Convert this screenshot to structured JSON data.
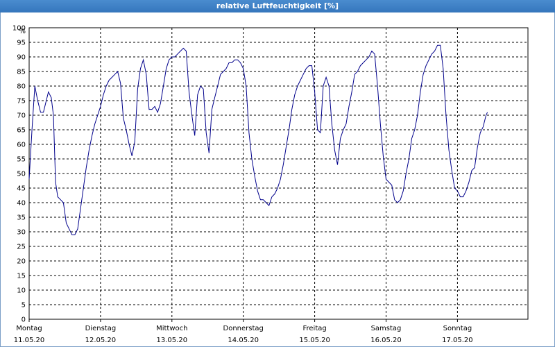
{
  "window": {
    "title": "relative Luftfeuchtigkeit [%]"
  },
  "chart_data": {
    "type": "line",
    "title": "relative Luftfeuchtigkeit [%]",
    "ylabel": "%",
    "xlabel": "",
    "ylim": [
      0,
      100
    ],
    "ytick_step": 5,
    "grid": true,
    "line_color": "#00008b",
    "days": [
      {
        "weekday": "Montag",
        "date": "11.05.20"
      },
      {
        "weekday": "Dienstag",
        "date": "12.05.20"
      },
      {
        "weekday": "Mittwoch",
        "date": "13.05.20"
      },
      {
        "weekday": "Donnerstag",
        "date": "14.05.20"
      },
      {
        "weekday": "Freitag",
        "date": "15.05.20"
      },
      {
        "weekday": "Samstag",
        "date": "16.05.20"
      },
      {
        "weekday": "Sonntag",
        "date": "17.05.20"
      }
    ],
    "x_unit": "days since 11.05.20 00:00",
    "series": [
      {
        "values": [
          [
            0.0,
            48
          ],
          [
            0.04,
            65
          ],
          [
            0.08,
            80
          ],
          [
            0.12,
            75
          ],
          [
            0.16,
            71
          ],
          [
            0.2,
            71
          ],
          [
            0.24,
            75
          ],
          [
            0.27,
            78
          ],
          [
            0.31,
            76
          ],
          [
            0.34,
            70
          ],
          [
            0.37,
            47
          ],
          [
            0.4,
            42
          ],
          [
            0.44,
            41
          ],
          [
            0.48,
            40
          ],
          [
            0.52,
            33
          ],
          [
            0.56,
            31
          ],
          [
            0.6,
            29
          ],
          [
            0.64,
            29
          ],
          [
            0.68,
            31
          ],
          [
            0.72,
            38
          ],
          [
            0.76,
            45
          ],
          [
            0.8,
            52
          ],
          [
            0.84,
            58
          ],
          [
            0.88,
            63
          ],
          [
            0.92,
            67
          ],
          [
            0.96,
            70
          ],
          [
            1.0,
            73
          ],
          [
            1.04,
            77
          ],
          [
            1.08,
            80
          ],
          [
            1.12,
            82
          ],
          [
            1.16,
            83
          ],
          [
            1.2,
            84
          ],
          [
            1.24,
            85
          ],
          [
            1.28,
            81
          ],
          [
            1.32,
            69
          ],
          [
            1.36,
            65
          ],
          [
            1.4,
            60
          ],
          [
            1.44,
            56
          ],
          [
            1.48,
            61
          ],
          [
            1.52,
            79
          ],
          [
            1.56,
            86
          ],
          [
            1.6,
            89
          ],
          [
            1.64,
            84
          ],
          [
            1.68,
            72
          ],
          [
            1.72,
            72
          ],
          [
            1.76,
            73
          ],
          [
            1.8,
            71
          ],
          [
            1.84,
            74
          ],
          [
            1.88,
            80
          ],
          [
            1.92,
            86
          ],
          [
            1.96,
            89
          ],
          [
            2.0,
            90
          ],
          [
            2.04,
            90
          ],
          [
            2.08,
            91
          ],
          [
            2.12,
            92
          ],
          [
            2.16,
            93
          ],
          [
            2.2,
            92
          ],
          [
            2.24,
            78
          ],
          [
            2.28,
            70
          ],
          [
            2.32,
            63
          ],
          [
            2.36,
            77
          ],
          [
            2.4,
            80
          ],
          [
            2.44,
            79
          ],
          [
            2.48,
            64
          ],
          [
            2.52,
            57
          ],
          [
            2.56,
            72
          ],
          [
            2.6,
            76
          ],
          [
            2.64,
            80
          ],
          [
            2.68,
            84
          ],
          [
            2.72,
            85
          ],
          [
            2.76,
            86
          ],
          [
            2.8,
            88
          ],
          [
            2.84,
            88
          ],
          [
            2.88,
            89
          ],
          [
            2.92,
            89
          ],
          [
            2.96,
            88
          ],
          [
            3.0,
            86
          ],
          [
            3.04,
            80
          ],
          [
            3.08,
            64
          ],
          [
            3.12,
            55
          ],
          [
            3.16,
            49
          ],
          [
            3.2,
            44
          ],
          [
            3.24,
            41
          ],
          [
            3.28,
            41
          ],
          [
            3.32,
            40
          ],
          [
            3.36,
            39
          ],
          [
            3.4,
            42
          ],
          [
            3.44,
            43
          ],
          [
            3.48,
            45
          ],
          [
            3.52,
            48
          ],
          [
            3.56,
            53
          ],
          [
            3.6,
            59
          ],
          [
            3.64,
            65
          ],
          [
            3.68,
            72
          ],
          [
            3.72,
            77
          ],
          [
            3.76,
            80
          ],
          [
            3.8,
            82
          ],
          [
            3.84,
            84
          ],
          [
            3.88,
            86
          ],
          [
            3.92,
            87
          ],
          [
            3.96,
            87
          ],
          [
            4.0,
            78
          ],
          [
            4.04,
            65
          ],
          [
            4.08,
            64
          ],
          [
            4.12,
            80
          ],
          [
            4.16,
            83
          ],
          [
            4.2,
            80
          ],
          [
            4.24,
            67
          ],
          [
            4.28,
            58
          ],
          [
            4.32,
            53
          ],
          [
            4.36,
            62
          ],
          [
            4.4,
            65
          ],
          [
            4.44,
            67
          ],
          [
            4.48,
            73
          ],
          [
            4.52,
            78
          ],
          [
            4.56,
            84
          ],
          [
            4.6,
            85
          ],
          [
            4.64,
            87
          ],
          [
            4.68,
            88
          ],
          [
            4.72,
            89
          ],
          [
            4.76,
            90
          ],
          [
            4.8,
            92
          ],
          [
            4.84,
            91
          ],
          [
            4.88,
            80
          ],
          [
            4.92,
            67
          ],
          [
            4.96,
            56
          ],
          [
            5.0,
            48
          ],
          [
            5.04,
            47
          ],
          [
            5.08,
            46
          ],
          [
            5.12,
            41
          ],
          [
            5.16,
            40
          ],
          [
            5.2,
            41
          ],
          [
            5.24,
            44
          ],
          [
            5.28,
            50
          ],
          [
            5.32,
            55
          ],
          [
            5.36,
            62
          ],
          [
            5.4,
            65
          ],
          [
            5.44,
            70
          ],
          [
            5.48,
            78
          ],
          [
            5.52,
            84
          ],
          [
            5.56,
            87
          ],
          [
            5.6,
            89
          ],
          [
            5.64,
            91
          ],
          [
            5.68,
            92
          ],
          [
            5.72,
            94
          ],
          [
            5.76,
            94
          ],
          [
            5.8,
            86
          ],
          [
            5.84,
            70
          ],
          [
            5.88,
            58
          ],
          [
            5.92,
            51
          ],
          [
            5.96,
            45
          ],
          [
            6.0,
            44
          ],
          [
            6.04,
            42
          ],
          [
            6.08,
            42
          ],
          [
            6.12,
            44
          ],
          [
            6.16,
            47
          ],
          [
            6.2,
            51
          ],
          [
            6.24,
            52
          ],
          [
            6.28,
            59
          ],
          [
            6.32,
            64
          ],
          [
            6.36,
            66
          ],
          [
            6.4,
            70
          ],
          [
            6.42,
            71
          ]
        ]
      }
    ]
  }
}
